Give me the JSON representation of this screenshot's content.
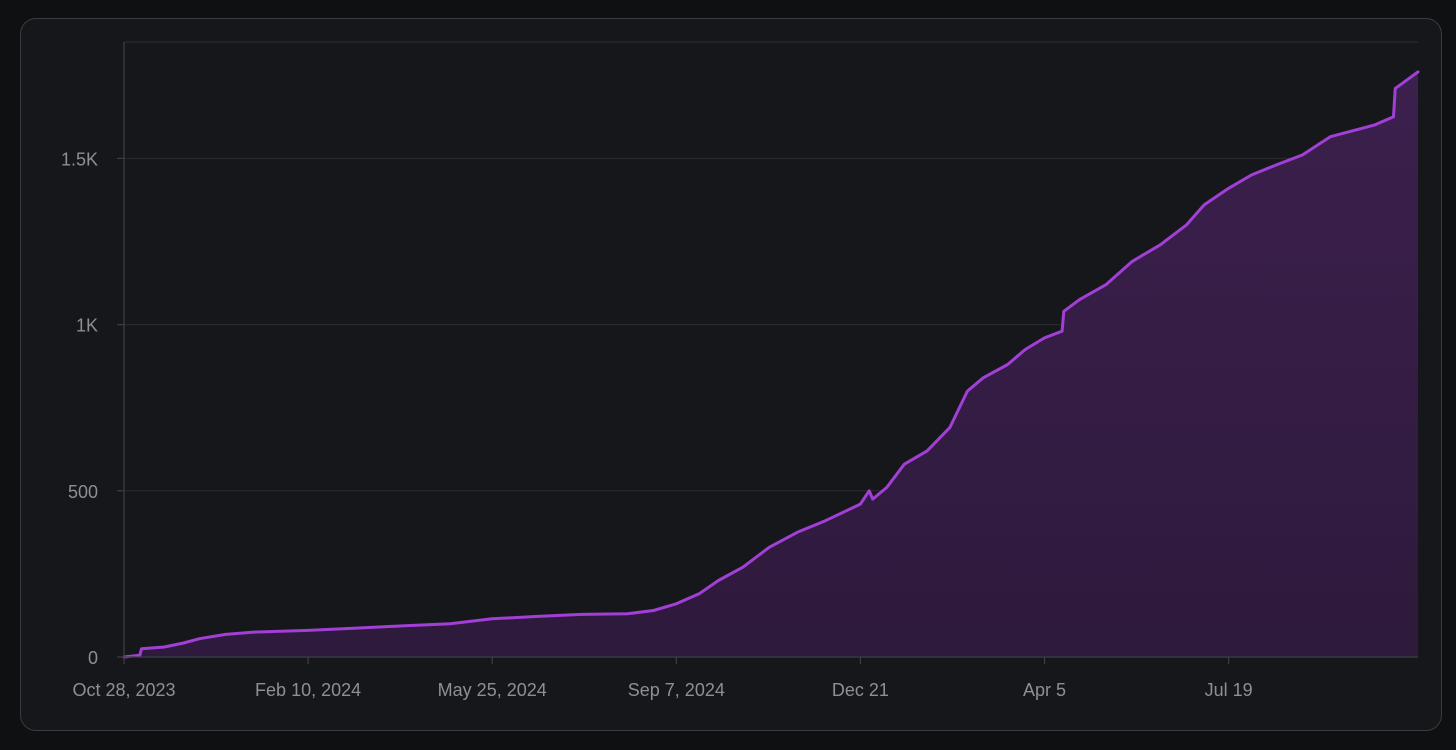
{
  "chart_data": {
    "type": "area",
    "title": "",
    "xlabel": "",
    "ylabel": "",
    "x_ticks": [
      {
        "label": "Oct 28, 2023",
        "date": "2023-10-28"
      },
      {
        "label": "Feb 10, 2024",
        "date": "2024-02-10"
      },
      {
        "label": "May 25, 2024",
        "date": "2024-05-25"
      },
      {
        "label": "Sep 7, 2024",
        "date": "2024-09-07"
      },
      {
        "label": "Dec 21",
        "date": "2024-12-21"
      },
      {
        "label": "Apr 5",
        "date": "2025-04-05"
      },
      {
        "label": "Jul 19",
        "date": "2025-07-19"
      }
    ],
    "y_ticks": [
      {
        "label": "0",
        "value": 0
      },
      {
        "label": "500",
        "value": 500
      },
      {
        "label": "1K",
        "value": 1000
      },
      {
        "label": "1.5K",
        "value": 1500
      }
    ],
    "xlim": [
      "2023-10-28",
      "2025-11-04"
    ],
    "ylim": [
      0,
      1850
    ],
    "grid": "horizontal",
    "colors": {
      "line": "#a23fd6",
      "area": "#3b1f4c",
      "grid": "#2b2c30",
      "axis": "#3e3f44",
      "text": "#8e8f94"
    },
    "series": [
      {
        "x": [
          "2023-10-28",
          "2023-11-06",
          "2023-11-07",
          "2023-11-20",
          "2023-12-01",
          "2023-12-10",
          "2023-12-25",
          "2024-01-10",
          "2024-02-10",
          "2024-03-01",
          "2024-03-20",
          "2024-04-10",
          "2024-05-01",
          "2024-05-25",
          "2024-06-20",
          "2024-07-15",
          "2024-08-10",
          "2024-08-25",
          "2024-09-07",
          "2024-09-20",
          "2024-10-01",
          "2024-10-15",
          "2024-10-30",
          "2024-11-15",
          "2024-12-01",
          "2024-12-21",
          "2024-12-26",
          "2024-12-28",
          "2025-01-05",
          "2025-01-15",
          "2025-01-28",
          "2025-02-10",
          "2025-02-20",
          "2025-03-01",
          "2025-03-15",
          "2025-03-25",
          "2025-04-05",
          "2025-04-15",
          "2025-04-16",
          "2025-04-25",
          "2025-05-10",
          "2025-05-25",
          "2025-06-10",
          "2025-06-25",
          "2025-07-05",
          "2025-07-19",
          "2025-08-01",
          "2025-08-15",
          "2025-08-30",
          "2025-09-15",
          "2025-10-10",
          "2025-10-21",
          "2025-10-22",
          "2025-11-04"
        ],
        "values": [
          0,
          5,
          25,
          30,
          42,
          55,
          68,
          75,
          80,
          85,
          90,
          95,
          100,
          115,
          122,
          128,
          130,
          140,
          160,
          190,
          230,
          270,
          330,
          375,
          410,
          460,
          500,
          475,
          510,
          580,
          620,
          690,
          800,
          840,
          880,
          925,
          960,
          980,
          1040,
          1075,
          1120,
          1190,
          1240,
          1300,
          1360,
          1410,
          1450,
          1480,
          1510,
          1565,
          1600,
          1625,
          1710,
          1760
        ]
      }
    ]
  }
}
